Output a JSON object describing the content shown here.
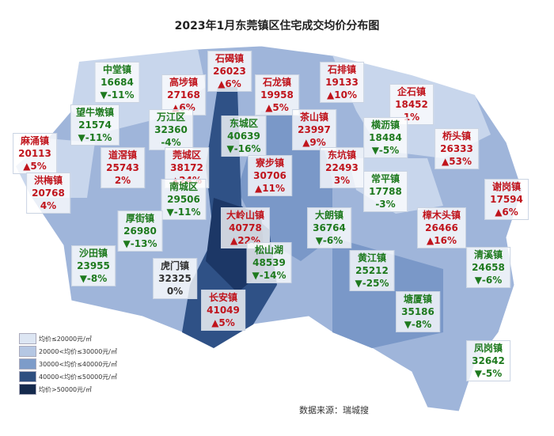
{
  "title": "2023年1月东莞镇区住宅成交均价分布图",
  "towns": [
    {
      "name": "石碣镇",
      "price": "26023",
      "change": "▲6%"
    },
    {
      "name": "中堂镇",
      "price": "16684",
      "change": "▼-11%"
    },
    {
      "name": "高埗镇",
      "price": "27168",
      "change": "▲6%"
    },
    {
      "name": "石龙镇",
      "price": "19958",
      "change": "▲5%"
    },
    {
      "name": "石排镇",
      "price": "19133",
      "change": "▲10%"
    },
    {
      "name": "企石镇",
      "price": "18452",
      "change": "1%"
    },
    {
      "name": "望牛墩镇",
      "price": "21574",
      "change": "▼-11%"
    },
    {
      "name": "万江区",
      "price": "32360",
      "change": "-4%"
    },
    {
      "name": "东城区",
      "price": "40639",
      "change": "▼-16%"
    },
    {
      "name": "茶山镇",
      "price": "23997",
      "change": "▲9%"
    },
    {
      "name": "横沥镇",
      "price": "18484",
      "change": "▼-5%"
    },
    {
      "name": "桥头镇",
      "price": "26333",
      "change": "▲53%"
    },
    {
      "name": "麻涌镇",
      "price": "20113",
      "change": "▲5%"
    },
    {
      "name": "道滘镇",
      "price": "25743",
      "change": "2%"
    },
    {
      "name": "莞城区",
      "price": "38172",
      "change": "▲24%"
    },
    {
      "name": "寮步镇",
      "price": "30706",
      "change": "▲11%"
    },
    {
      "name": "东坑镇",
      "price": "22493",
      "change": "3%"
    },
    {
      "name": "常平镇",
      "price": "17788",
      "change": "-3%"
    },
    {
      "name": "谢岗镇",
      "price": "17594",
      "change": "▲6%"
    },
    {
      "name": "洪梅镇",
      "price": "20768",
      "change": "4%"
    },
    {
      "name": "南城区",
      "price": "29506",
      "change": "▼-11%"
    },
    {
      "name": "大岭山镇",
      "price": "40778",
      "change": "▲22%"
    },
    {
      "name": "大朗镇",
      "price": "36764",
      "change": "▼-6%"
    },
    {
      "name": "樟木头镇",
      "price": "26466",
      "change": "▲16%"
    },
    {
      "name": "厚街镇",
      "price": "26980",
      "change": "▼-13%"
    },
    {
      "name": "沙田镇",
      "price": "23955",
      "change": "▼-8%"
    },
    {
      "name": "虎门镇",
      "price": "32325",
      "change": "0%"
    },
    {
      "name": "松山湖",
      "price": "48539",
      "change": "▼-14%"
    },
    {
      "name": "黄江镇",
      "price": "25212",
      "change": "▼-25%"
    },
    {
      "name": "清溪镇",
      "price": "24658",
      "change": "▼-6%"
    },
    {
      "name": "长安镇",
      "price": "41049",
      "change": "▲5%"
    },
    {
      "name": "塘厦镇",
      "price": "35186",
      "change": "▼-8%"
    },
    {
      "name": "凤岗镇",
      "price": "32642",
      "change": "▼-5%"
    }
  ],
  "legend": [
    {
      "label": "均价≤20000元/㎡",
      "color": "#dde6f3"
    },
    {
      "label": "20000<均价≤30000元/㎡",
      "color": "#b5c7e3"
    },
    {
      "label": "30000<均价≤40000元/㎡",
      "color": "#7d9cc9"
    },
    {
      "label": "40000<均价≤50000元/㎡",
      "color": "#2e4f80"
    },
    {
      "label": "均价>50000元/㎡",
      "color": "#142a4d"
    }
  ],
  "source": "数据来源：瑞城搜"
}
